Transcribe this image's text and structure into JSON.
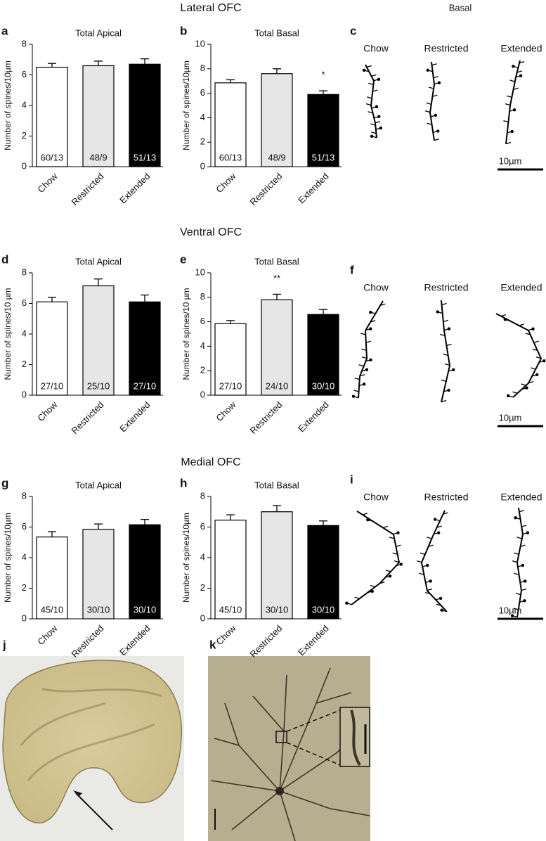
{
  "sections": [
    "Lateral OFC",
    "Ventral OFC",
    "Medial OFC"
  ],
  "basal_header": "Basal",
  "drawing_panels": [
    {
      "letter": "c",
      "labels": [
        "Chow",
        "Restricted",
        "Extended"
      ],
      "scale": "10µm"
    },
    {
      "letter": "f",
      "labels": [
        "Chow",
        "Restricted",
        "Extended"
      ],
      "scale": "10µm"
    },
    {
      "letter": "i",
      "labels": [
        "Chow",
        "Restricted",
        "Extended"
      ],
      "scale": "10µm"
    }
  ],
  "image_panels": [
    {
      "letter": "j"
    },
    {
      "letter": "k"
    }
  ],
  "chart_data": [
    {
      "type": "bar",
      "panel": "a",
      "title": "Total Apical",
      "ylabel": "Number of spines/10µm",
      "categories": [
        "Chow",
        "Restricted",
        "Extended"
      ],
      "values": [
        6.5,
        6.6,
        6.7
      ],
      "errors": [
        0.25,
        0.3,
        0.35
      ],
      "n_labels": [
        "60/13",
        "48/9",
        "51/13"
      ],
      "significance": [
        null,
        null,
        null
      ],
      "colors": [
        "#ffffff",
        "#e6e6e6",
        "#000000"
      ],
      "ylim": [
        0,
        8
      ],
      "yticks": [
        0,
        2,
        4,
        6,
        8
      ]
    },
    {
      "type": "bar",
      "panel": "b",
      "title": "Total Basal",
      "ylabel": "Number of spines/10µm",
      "categories": [
        "Chow",
        "Restricted",
        "Extended"
      ],
      "values": [
        6.85,
        7.6,
        5.9
      ],
      "errors": [
        0.25,
        0.4,
        0.3
      ],
      "n_labels": [
        "60/13",
        "48/9",
        "51/13"
      ],
      "significance": [
        null,
        null,
        "*"
      ],
      "colors": [
        "#ffffff",
        "#e6e6e6",
        "#000000"
      ],
      "ylim": [
        0,
        10
      ],
      "yticks": [
        0,
        2,
        4,
        6,
        8,
        10
      ]
    },
    {
      "type": "bar",
      "panel": "d",
      "title": "Total Apical",
      "ylabel": "Number of spines/10 µm",
      "categories": [
        "Chow",
        "Restricted",
        "Extended"
      ],
      "values": [
        6.1,
        7.15,
        6.1
      ],
      "errors": [
        0.3,
        0.45,
        0.45
      ],
      "n_labels": [
        "27/10",
        "25/10",
        "27/10"
      ],
      "significance": [
        null,
        null,
        null
      ],
      "colors": [
        "#ffffff",
        "#e6e6e6",
        "#000000"
      ],
      "ylim": [
        0,
        8
      ],
      "yticks": [
        0,
        2,
        4,
        6,
        8
      ]
    },
    {
      "type": "bar",
      "panel": "e",
      "title": "Total Basal",
      "ylabel": "Number of spines/10 µm",
      "categories": [
        "Chow",
        "Restricted",
        "Extended"
      ],
      "values": [
        5.85,
        7.8,
        6.6
      ],
      "errors": [
        0.25,
        0.45,
        0.4
      ],
      "n_labels": [
        "27/10",
        "24/10",
        "30/10"
      ],
      "significance": [
        null,
        "**",
        null
      ],
      "colors": [
        "#ffffff",
        "#e6e6e6",
        "#000000"
      ],
      "ylim": [
        0,
        10
      ],
      "yticks": [
        0,
        2,
        4,
        6,
        8,
        10
      ]
    },
    {
      "type": "bar",
      "panel": "g",
      "title": "Total Apical",
      "ylabel": "Number of spines/10µm",
      "categories": [
        "Chow",
        "Restricted",
        "Extended"
      ],
      "values": [
        5.35,
        5.85,
        6.15
      ],
      "errors": [
        0.35,
        0.35,
        0.35
      ],
      "n_labels": [
        "45/10",
        "30/10",
        "30/10"
      ],
      "significance": [
        null,
        null,
        null
      ],
      "colors": [
        "#ffffff",
        "#e6e6e6",
        "#000000"
      ],
      "ylim": [
        0,
        8
      ],
      "yticks": [
        0,
        2,
        4,
        6,
        8
      ]
    },
    {
      "type": "bar",
      "panel": "h",
      "title": "Total Basal",
      "ylabel": "Number of spines/10µm",
      "categories": [
        "Chow",
        "Restricted",
        "Extended"
      ],
      "values": [
        6.45,
        7.0,
        6.1
      ],
      "errors": [
        0.35,
        0.4,
        0.3
      ],
      "n_labels": [
        "45/10",
        "30/10",
        "30/10"
      ],
      "significance": [
        null,
        null,
        null
      ],
      "colors": [
        "#ffffff",
        "#e6e6e6",
        "#000000"
      ],
      "ylim": [
        0,
        8
      ],
      "yticks": [
        0,
        2,
        4,
        6,
        8
      ]
    }
  ]
}
